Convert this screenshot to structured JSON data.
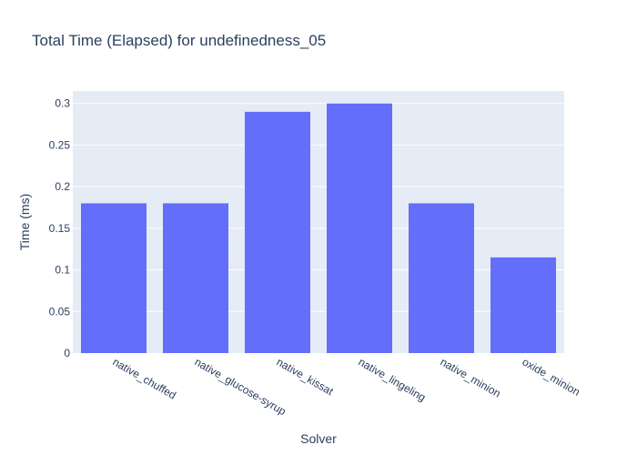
{
  "chart_data": {
    "type": "bar",
    "title": "Total Time (Elapsed) for undefinedness_05",
    "xlabel": "Solver",
    "ylabel": "Time (ms)",
    "categories": [
      "native_chuffed",
      "native_glucose-syrup",
      "native_kissat",
      "native_lingeling",
      "native_minion",
      "oxide_minion"
    ],
    "values": [
      0.18,
      0.18,
      0.29,
      0.3,
      0.18,
      0.115
    ],
    "ylim": [
      0,
      0.315
    ],
    "yticks": [
      0,
      0.05,
      0.1,
      0.15,
      0.2,
      0.25,
      0.3
    ],
    "ytick_labels": [
      "0",
      "0.05",
      "0.1",
      "0.15",
      "0.2",
      "0.25",
      "0.3"
    ],
    "grid": true,
    "colors": {
      "bar": "#636efa",
      "plot_bg": "#e5ecf6",
      "grid": "#ffffff",
      "text": "#2a3f5f"
    }
  }
}
